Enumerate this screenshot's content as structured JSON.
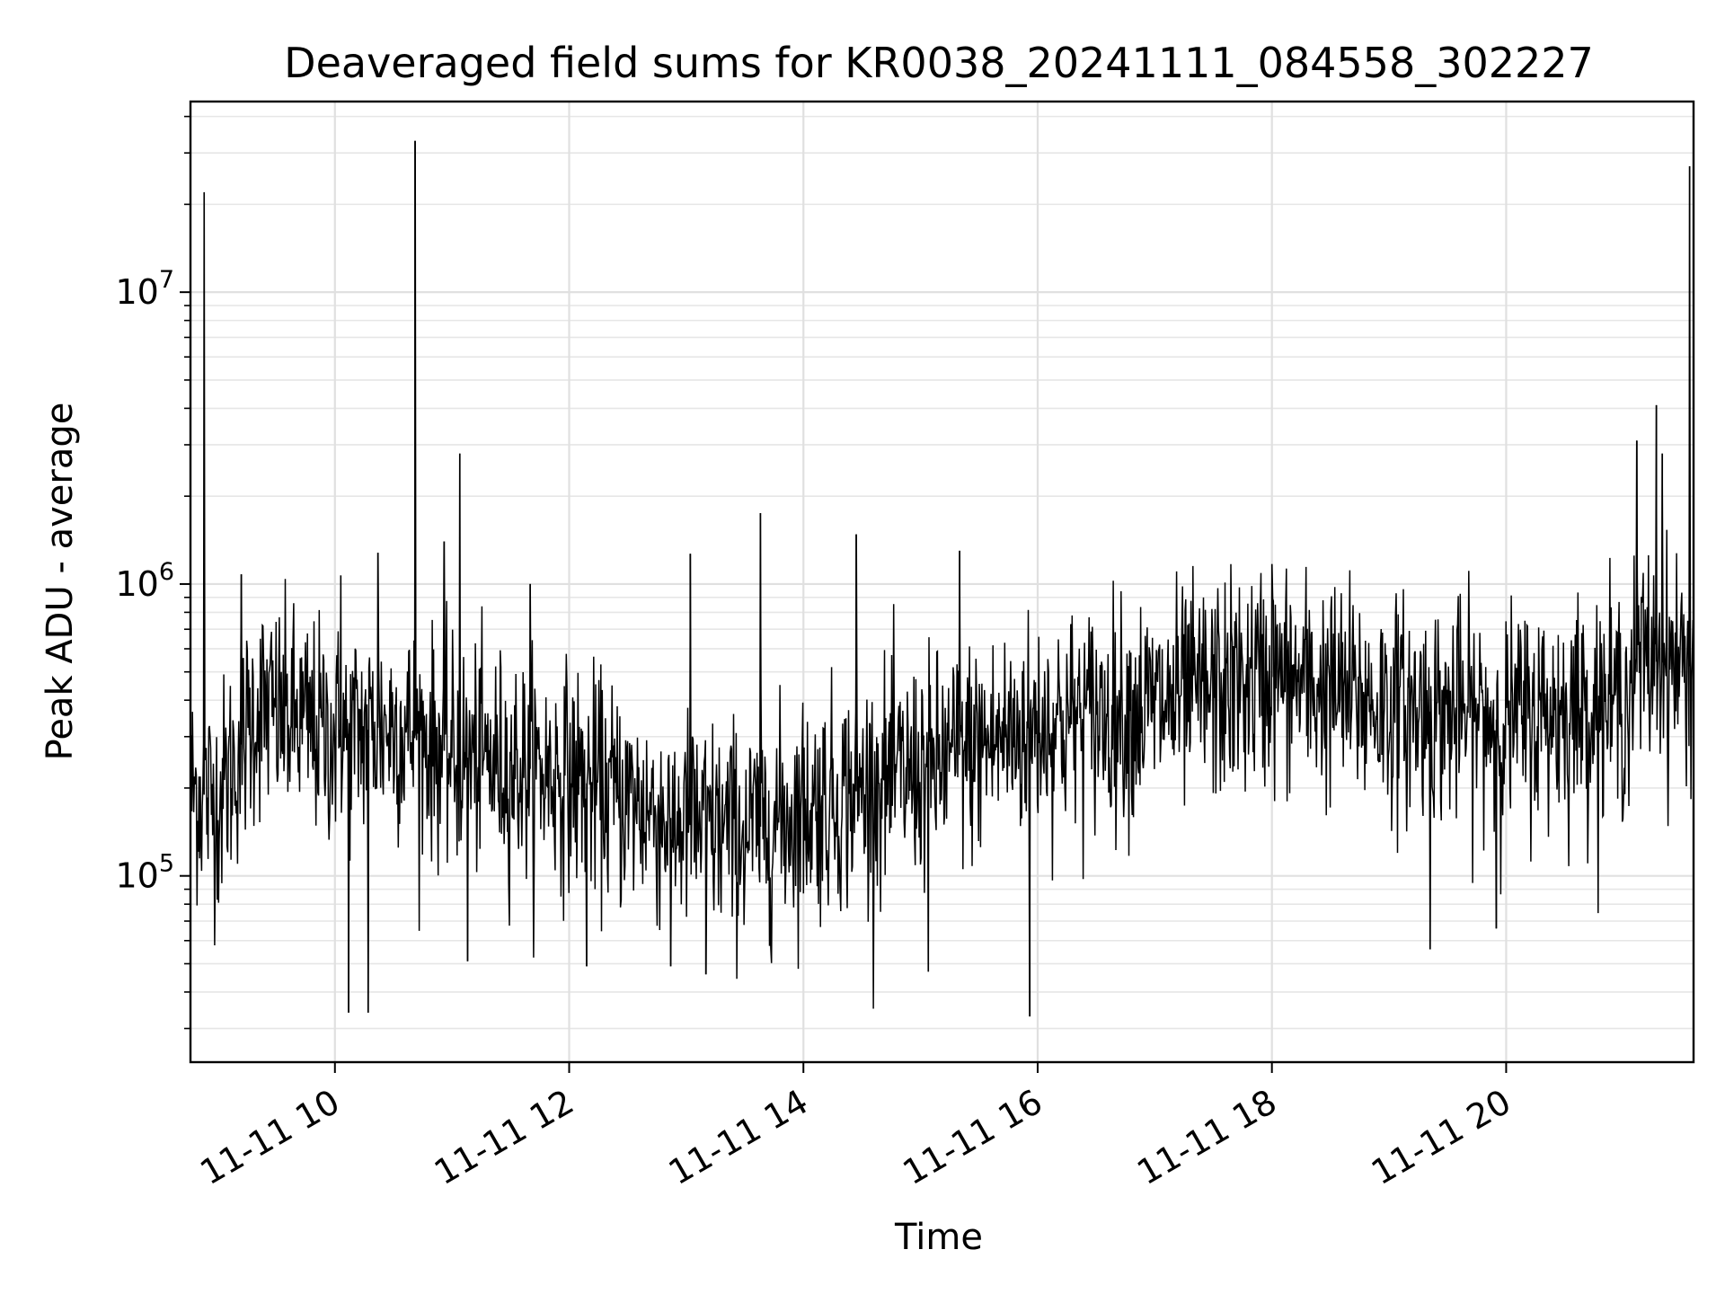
{
  "chart_data": {
    "type": "line",
    "title": "Deaveraged field sums for KR0038_20241111_084558_302227",
    "xlabel": "Time",
    "ylabel": "Peak ADU - average",
    "yscale": "log",
    "xlim": [
      "2024-11-11 08:46",
      "2024-11-11 21:36"
    ],
    "ylim": [
      23000,
      45000000
    ],
    "grid": true,
    "x_ticks": [
      {
        "value": "2024-11-11 10:00",
        "label": "11-11 10"
      },
      {
        "value": "2024-11-11 12:00",
        "label": "11-11 12"
      },
      {
        "value": "2024-11-11 14:00",
        "label": "11-11 14"
      },
      {
        "value": "2024-11-11 16:00",
        "label": "11-11 16"
      },
      {
        "value": "2024-11-11 18:00",
        "label": "11-11 18"
      },
      {
        "value": "2024-11-11 20:00",
        "label": "11-11 20"
      }
    ],
    "y_ticks": [
      {
        "value": 100000,
        "base": "10",
        "exp": "5"
      },
      {
        "value": 1000000,
        "base": "10",
        "exp": "6"
      },
      {
        "value": 10000000,
        "base": "10",
        "exp": "7"
      }
    ],
    "line_color": "#000000",
    "baseline_trend": {
      "x": [
        "2024-11-11 08:46",
        "2024-11-11 09:00",
        "2024-11-11 09:20",
        "2024-11-11 10:00",
        "2024-11-11 10:30",
        "2024-11-11 11:00",
        "2024-11-11 12:00",
        "2024-11-11 13:00",
        "2024-11-11 13:30",
        "2024-11-11 14:00",
        "2024-11-11 15:00",
        "2024-11-11 16:00",
        "2024-11-11 17:00",
        "2024-11-11 18:00",
        "2024-11-11 19:00",
        "2024-11-11 20:00",
        "2024-11-11 21:00",
        "2024-11-11 21:10",
        "2024-11-11 21:36"
      ],
      "y": [
        200000,
        180000,
        380000,
        300000,
        330000,
        260000,
        220000,
        150000,
        140000,
        170000,
        230000,
        330000,
        380000,
        480000,
        380000,
        340000,
        400000,
        550000,
        520000
      ]
    },
    "spikes": [
      {
        "x": "2024-11-11 08:53",
        "y": 22000000
      },
      {
        "x": "2024-11-11 09:12",
        "y": 1080000
      },
      {
        "x": "2024-11-11 10:03",
        "y": 1070000
      },
      {
        "x": "2024-11-11 10:07",
        "y": 34000
      },
      {
        "x": "2024-11-11 10:17",
        "y": 34000
      },
      {
        "x": "2024-11-11 10:22",
        "y": 1280000
      },
      {
        "x": "2024-11-11 10:41",
        "y": 33000000
      },
      {
        "x": "2024-11-11 10:56",
        "y": 1400000
      },
      {
        "x": "2024-11-11 11:04",
        "y": 2800000
      },
      {
        "x": "2024-11-11 11:08",
        "y": 51000
      },
      {
        "x": "2024-11-11 11:40",
        "y": 1000000
      },
      {
        "x": "2024-11-11 12:09",
        "y": 49000
      },
      {
        "x": "2024-11-11 12:52",
        "y": 49000
      },
      {
        "x": "2024-11-11 13:02",
        "y": 1270000
      },
      {
        "x": "2024-11-11 13:10",
        "y": 46000
      },
      {
        "x": "2024-11-11 13:38",
        "y": 1750000
      },
      {
        "x": "2024-11-11 14:27",
        "y": 1480000
      },
      {
        "x": "2024-11-11 15:04",
        "y": 47000
      },
      {
        "x": "2024-11-11 15:20",
        "y": 1300000
      },
      {
        "x": "2024-11-11 15:56",
        "y": 33000
      },
      {
        "x": "2024-11-11 18:00",
        "y": 1170000
      },
      {
        "x": "2024-11-11 19:21",
        "y": 56000
      },
      {
        "x": "2024-11-11 19:55",
        "y": 66000
      },
      {
        "x": "2024-11-11 21:07",
        "y": 3100000
      },
      {
        "x": "2024-11-11 21:17",
        "y": 4100000
      },
      {
        "x": "2024-11-11 21:20",
        "y": 2800000
      },
      {
        "x": "2024-11-11 21:34",
        "y": 27000000
      }
    ]
  }
}
